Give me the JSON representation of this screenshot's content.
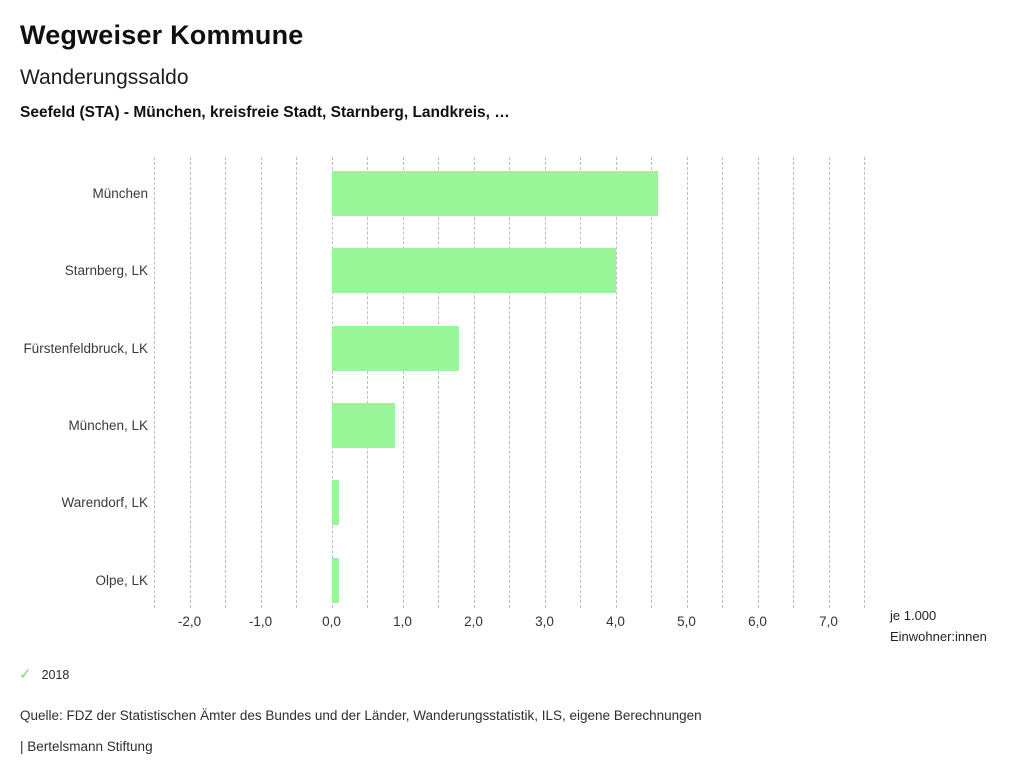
{
  "header": {
    "app_title": "Wegweiser Kommune",
    "chart_title": "Wanderungssaldo",
    "subtitle": "Seefeld (STA) - München, kreisfreie Stadt, Starnberg, Landkreis, …"
  },
  "chart_data": {
    "type": "bar",
    "orientation": "horizontal",
    "title": "Wanderungssaldo",
    "categories": [
      "München",
      "Starnberg, LK",
      "Fürstenfeldbruck, LK",
      "München, LK",
      "Warendorf, LK",
      "Olpe, LK"
    ],
    "series": [
      {
        "name": "2018",
        "values": [
          4.6,
          4.0,
          1.8,
          0.9,
          0.1,
          0.1
        ]
      }
    ],
    "xlim": [
      -2.5,
      7.5
    ],
    "gridline_step": 0.5,
    "grid": true,
    "ticks": [
      {
        "value": -2,
        "label": "-2,0"
      },
      {
        "value": -1,
        "label": "-1,0"
      },
      {
        "value": 0,
        "label": "0,0"
      },
      {
        "value": 1,
        "label": "1,0"
      },
      {
        "value": 2,
        "label": "2,0"
      },
      {
        "value": 3,
        "label": "3,0"
      },
      {
        "value": 4,
        "label": "4,0"
      },
      {
        "value": 5,
        "label": "5,0"
      },
      {
        "value": 6,
        "label": "6,0"
      },
      {
        "value": 7,
        "label": "7,0"
      }
    ],
    "unit_label_lines": [
      "je 1.000",
      "Einwohner:innen"
    ],
    "bar_color": "#98f598",
    "gridline_color": "#bdbdbd"
  },
  "legend": {
    "items": [
      {
        "label": "2018",
        "marker": "check",
        "color": "#7fd97f"
      }
    ]
  },
  "footer": {
    "source": "Quelle: FDZ der Statistischen Ämter des Bundes und der Länder, Wanderungsstatistik, ILS, eigene Berechnungen",
    "attribution": "| Bertelsmann Stiftung"
  }
}
